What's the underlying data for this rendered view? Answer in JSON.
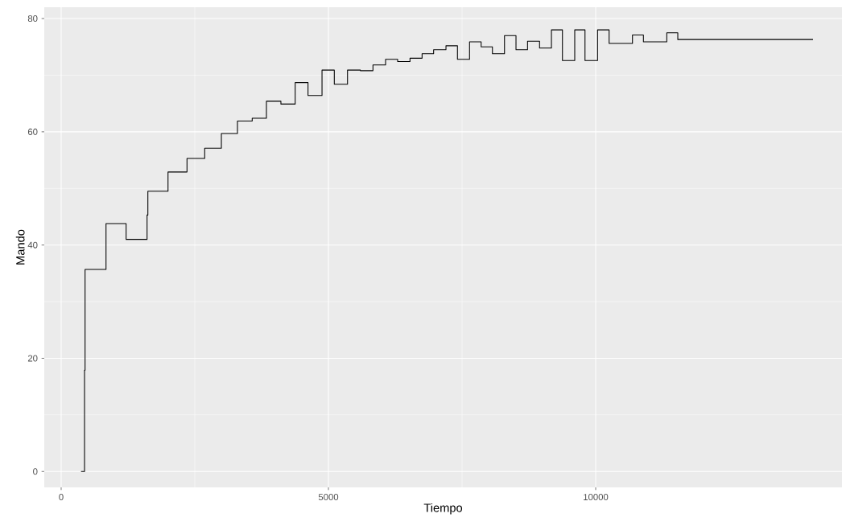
{
  "chart_data": {
    "type": "step",
    "xlabel": "Tiempo",
    "ylabel": "Mando",
    "x": [
      372,
      437,
      447,
      839,
      1215,
      1607,
      1622,
      1999,
      2354,
      2685,
      2997,
      3298,
      3574,
      3840,
      4111,
      4378,
      4618,
      4880,
      5110,
      5357,
      5598,
      5833,
      6069,
      6295,
      6526,
      6752,
      6968,
      7199,
      7414,
      7640,
      7857,
      8068,
      8294,
      8509,
      8725,
      8950,
      9172,
      9378,
      9608,
      9800,
      10035,
      10251,
      10688,
      10893,
      11330,
      11536,
      14066
    ],
    "values": [
      0,
      17.9,
      35.7,
      43.8,
      41.0,
      45.3,
      49.5,
      52.9,
      55.3,
      57.1,
      59.7,
      61.9,
      62.4,
      65.4,
      64.9,
      68.7,
      66.4,
      70.9,
      68.4,
      70.9,
      70.8,
      71.8,
      72.8,
      72.4,
      73.0,
      73.8,
      74.5,
      75.2,
      72.8,
      75.9,
      75.0,
      73.8,
      77.0,
      74.5,
      76.0,
      74.8,
      78.0,
      72.6,
      78.0,
      72.6,
      78.0,
      75.6,
      77.1,
      75.9,
      77.5,
      76.3,
      76.3
    ],
    "color": "#000000",
    "xlim": [
      -316,
      14608
    ],
    "ylim": [
      -2.8,
      82.0
    ],
    "xticks": [
      0,
      5000,
      10000
    ],
    "yticks": [
      0,
      20,
      40,
      60,
      80
    ],
    "grid": true
  }
}
